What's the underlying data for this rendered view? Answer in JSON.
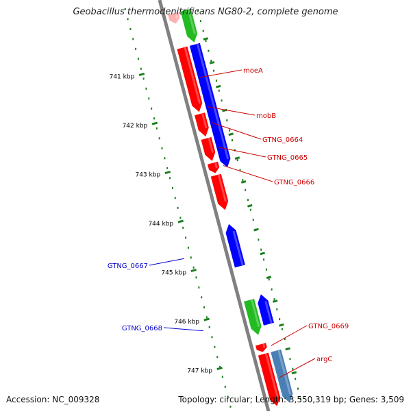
{
  "title": "Geobacillus thermodenitrificans NG80-2, complete genome",
  "footer": {
    "accession": "Accession: NC_009328",
    "stats": "Topology: circular; Length: 3,550,319 bp; Genes: 3,509"
  },
  "colors": {
    "background": "#ffffff",
    "backbone": "#808080",
    "gene_red": "#ff0000",
    "gene_blue": "#0000ff",
    "gene_green": "#22bb22",
    "gene_steelblue": "#4a7fb5",
    "gene_pink": "#ffb0b0",
    "gene_lightgreen": "#b8e8b8",
    "tick_green": "#1a7f1a",
    "label_red": "#cc0000",
    "label_blue": "#0000cc"
  },
  "scale_ticks": [
    {
      "kbp": 741,
      "label": "741 kbp"
    },
    {
      "kbp": 742,
      "label": "742 kbp"
    },
    {
      "kbp": 743,
      "label": "743 kbp"
    },
    {
      "kbp": 744,
      "label": "744 kbp"
    },
    {
      "kbp": 745,
      "label": "745 kbp"
    },
    {
      "kbp": 746,
      "label": "746 kbp"
    },
    {
      "kbp": 747,
      "label": "747 kbp"
    }
  ],
  "genes": [
    {
      "name": "",
      "start_kbp": 740.0,
      "end_kbp": 740.2,
      "strand": "+",
      "track": 1,
      "color": "gene_pink"
    },
    {
      "name": "",
      "start_kbp": 740.0,
      "end_kbp": 740.65,
      "strand": "+",
      "track": 2,
      "color": "gene_green"
    },
    {
      "name": "moeA",
      "start_kbp": 740.7,
      "end_kbp": 742.0,
      "strand": "+",
      "track": 1,
      "color": "gene_red",
      "label_side": "right"
    },
    {
      "name": "mobB",
      "start_kbp": 740.7,
      "end_kbp": 743.2,
      "strand": "+",
      "track": 2,
      "color": "gene_blue",
      "label_side": "right"
    },
    {
      "name": "GTNG_0664",
      "start_kbp": 742.05,
      "end_kbp": 742.5,
      "strand": "+",
      "track": 1,
      "color": "gene_red",
      "label_side": "right"
    },
    {
      "name": "GTNG_0665",
      "start_kbp": 742.55,
      "end_kbp": 743.0,
      "strand": "+",
      "track": 1,
      "color": "gene_red",
      "label_side": "right"
    },
    {
      "name": "GTNG_0666",
      "start_kbp": 743.05,
      "end_kbp": 743.25,
      "strand": "+",
      "track": 1,
      "color": "gene_red",
      "label_side": "right"
    },
    {
      "name": "",
      "start_kbp": 743.3,
      "end_kbp": 744.0,
      "strand": "+",
      "track": 1,
      "color": "gene_red"
    },
    {
      "name": "GTNG_0667",
      "start_kbp": 744.3,
      "end_kbp": 745.15,
      "strand": "-",
      "track": 1,
      "color": "gene_blue",
      "label_side": "left"
    },
    {
      "name": "GTNG_0668",
      "start_kbp": 745.85,
      "end_kbp": 746.55,
      "strand": "+",
      "track": 1,
      "color": "gene_green",
      "label_side": "left"
    },
    {
      "name": "",
      "start_kbp": 745.8,
      "end_kbp": 746.4,
      "strand": "-",
      "track": 2,
      "color": "gene_blue"
    },
    {
      "name": "GTNG_0669",
      "start_kbp": 746.75,
      "end_kbp": 746.9,
      "strand": "+",
      "track": 1,
      "color": "gene_red",
      "label_side": "right"
    },
    {
      "name": "argC",
      "start_kbp": 746.95,
      "end_kbp": 748.0,
      "strand": "+",
      "track": 1,
      "color": "gene_red",
      "label_side": "right"
    },
    {
      "name": "",
      "start_kbp": 746.95,
      "end_kbp": 748.0,
      "strand": "+",
      "track": 2,
      "color": "gene_steelblue"
    }
  ]
}
